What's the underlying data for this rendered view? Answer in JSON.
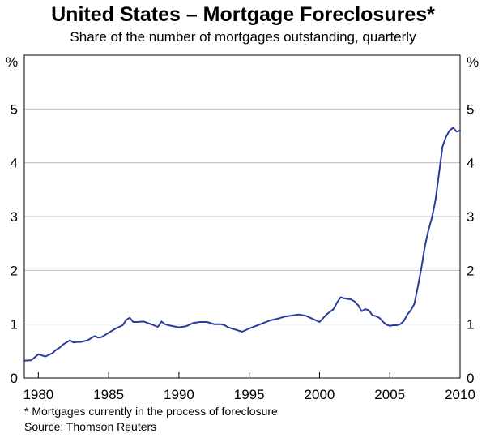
{
  "chart_data": {
    "type": "line",
    "title": "United States – Mortgage Foreclosures*",
    "subtitle": "Share of the number of mortgages outstanding, quarterly",
    "ylabel_left": "%",
    "ylabel_right": "%",
    "xlim": [
      1979.0,
      2010.0
    ],
    "ylim": [
      0,
      6
    ],
    "yticks": [
      0,
      1,
      2,
      3,
      4,
      5
    ],
    "xticks": [
      1980,
      1985,
      1990,
      1995,
      2000,
      2005,
      2010
    ],
    "grid": true,
    "line_color": "#2b3b9a",
    "series": [
      {
        "x": [
          1979.0,
          1979.5,
          1980.0,
          1980.5,
          1981.0,
          1981.25,
          1981.5,
          1981.75,
          1982.0,
          1982.25,
          1982.5,
          1982.75,
          1983.0,
          1983.5,
          1984.0,
          1984.25,
          1984.5,
          1985.0,
          1985.5,
          1986.0,
          1986.25,
          1986.5,
          1986.75,
          1987.0,
          1987.5,
          1988.0,
          1988.5,
          1988.75,
          1989.0,
          1989.25,
          1990.0,
          1990.5,
          1991.0,
          1991.5,
          1992.0,
          1992.5,
          1993.0,
          1993.25,
          1993.5,
          1994.0,
          1994.5,
          1995.0,
          1995.5,
          1996.0,
          1996.5,
          1997.0,
          1997.5,
          1998.0,
          1998.5,
          1999.0,
          1999.5,
          2000.0,
          2000.5,
          2001.0,
          2001.25,
          2001.5,
          2001.75,
          2002.0,
          2002.25,
          2002.5,
          2002.75,
          2003.0,
          2003.25,
          2003.5,
          2003.75,
          2004.0,
          2004.25,
          2004.5,
          2004.75,
          2005.0,
          2005.25,
          2005.5,
          2005.75,
          2006.0,
          2006.25,
          2006.5,
          2006.75,
          2007.0,
          2007.25,
          2007.5,
          2007.75,
          2008.0,
          2008.25,
          2008.5,
          2008.75,
          2009.0,
          2009.25,
          2009.5,
          2009.75,
          2010.0
        ],
        "values": [
          0.32,
          0.33,
          0.44,
          0.4,
          0.46,
          0.52,
          0.56,
          0.62,
          0.66,
          0.7,
          0.66,
          0.67,
          0.67,
          0.7,
          0.78,
          0.75,
          0.76,
          0.84,
          0.92,
          0.98,
          1.08,
          1.12,
          1.04,
          1.04,
          1.05,
          1.0,
          0.95,
          1.05,
          1.0,
          0.98,
          0.94,
          0.96,
          1.02,
          1.04,
          1.04,
          1.0,
          1.0,
          0.98,
          0.94,
          0.9,
          0.86,
          0.92,
          0.97,
          1.02,
          1.07,
          1.1,
          1.14,
          1.16,
          1.18,
          1.16,
          1.1,
          1.04,
          1.18,
          1.28,
          1.4,
          1.5,
          1.48,
          1.47,
          1.46,
          1.42,
          1.35,
          1.24,
          1.28,
          1.26,
          1.17,
          1.15,
          1.12,
          1.05,
          0.99,
          0.97,
          0.98,
          0.98,
          1.0,
          1.06,
          1.18,
          1.26,
          1.38,
          1.7,
          2.05,
          2.45,
          2.75,
          2.98,
          3.3,
          3.8,
          4.3,
          4.48,
          4.6,
          4.65,
          4.58,
          4.6
        ]
      }
    ]
  },
  "footnote": "*   Mortgages currently in the process of foreclosure",
  "source": "Source: Thomson Reuters"
}
